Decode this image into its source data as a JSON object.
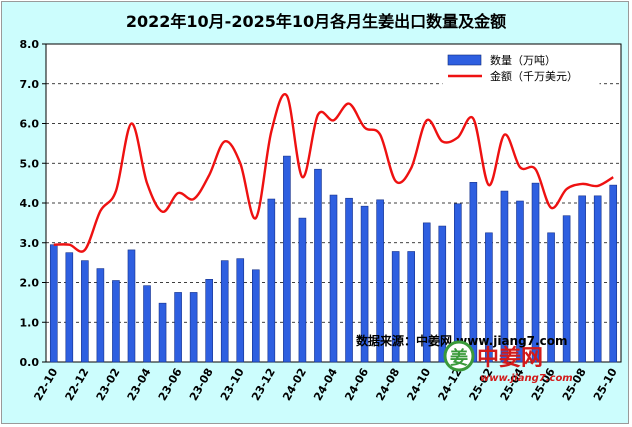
{
  "chart_data": {
    "type": "bar",
    "title": "2022年10月-2025年10月各月生姜出口数量及金额",
    "categories": [
      "22-10",
      "22-11",
      "22-12",
      "23-01",
      "23-02",
      "23-03",
      "23-04",
      "23-05",
      "23-06",
      "23-07",
      "23-08",
      "23-09",
      "23-10",
      "23-11",
      "23-12",
      "24-01",
      "24-02",
      "24-03",
      "24-04",
      "24-05",
      "24-06",
      "24-07",
      "24-08",
      "24-09",
      "24-10",
      "24-11",
      "24-12",
      "25-01",
      "25-02",
      "25-03",
      "25-04",
      "25-05",
      "25-06",
      "25-07",
      "25-08",
      "25-09",
      "25-10"
    ],
    "y_ticks": [
      "0.0",
      "1.0",
      "2.0",
      "3.0",
      "4.0",
      "5.0",
      "6.0",
      "7.0",
      "8.0"
    ],
    "ylim": [
      0,
      8
    ],
    "grid": true,
    "legend_position": "top-right",
    "series": [
      {
        "name": "数量（万吨）",
        "type": "bar",
        "color": "#2e5fe0",
        "values": [
          2.95,
          2.75,
          2.55,
          2.35,
          2.05,
          2.82,
          1.92,
          1.48,
          1.75,
          1.75,
          2.08,
          2.55,
          2.6,
          2.32,
          4.1,
          5.18,
          3.62,
          4.85,
          4.2,
          4.12,
          3.92,
          4.08,
          2.78,
          2.78,
          3.5,
          3.42,
          3.98,
          4.52,
          3.25,
          4.3,
          4.05,
          4.5,
          3.25,
          3.68,
          4.18,
          4.18,
          4.45
        ]
      },
      {
        "name": "金额（千万美元）",
        "type": "line",
        "color": "#ee1111",
        "values": [
          2.95,
          2.95,
          2.82,
          3.8,
          4.3,
          6.0,
          4.5,
          3.78,
          4.25,
          4.1,
          4.7,
          5.55,
          5.0,
          3.62,
          5.8,
          6.7,
          4.65,
          6.22,
          6.08,
          6.5,
          5.9,
          5.72,
          4.55,
          4.88,
          6.08,
          5.55,
          5.65,
          6.12,
          4.45,
          5.72,
          4.9,
          4.85,
          3.88,
          4.35,
          4.48,
          4.43,
          4.65
        ]
      }
    ],
    "source_note": "数据来源：中姜网 www.jiang7.com"
  },
  "watermark": {
    "logo_glyph": "姜",
    "brand": "中姜网",
    "url": "www.jiang7.com"
  }
}
